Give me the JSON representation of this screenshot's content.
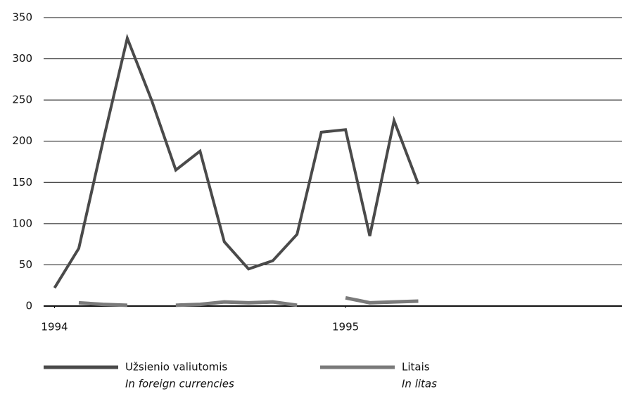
{
  "chart_data": {
    "type": "line",
    "x": [
      0,
      1,
      2,
      3,
      4,
      5,
      6,
      7,
      8,
      9,
      10,
      11,
      12,
      13,
      14,
      15
    ],
    "xlim": [
      -0.45,
      23.4
    ],
    "xticks": [
      {
        "value": 0,
        "label": "1994"
      },
      {
        "value": 12,
        "label": "1995"
      }
    ],
    "ylim": [
      0,
      350
    ],
    "yticks": [
      0,
      50,
      100,
      150,
      200,
      250,
      300,
      350
    ],
    "grid": true,
    "series": [
      {
        "name": "Užsienio valiutomis",
        "name_en": "In foreign currencies",
        "color": "#4a4a4a",
        "values": [
          22,
          70,
          200,
          325,
          250,
          165,
          188,
          78,
          45,
          55,
          87,
          211,
          214,
          85,
          225,
          148
        ]
      },
      {
        "name": "Litais",
        "name_en": "In litas",
        "color": "#7a7a7a",
        "values": [
          null,
          4,
          2,
          1,
          null,
          1,
          2,
          5,
          4,
          5,
          1,
          null,
          10,
          4,
          5,
          6
        ]
      }
    ]
  }
}
